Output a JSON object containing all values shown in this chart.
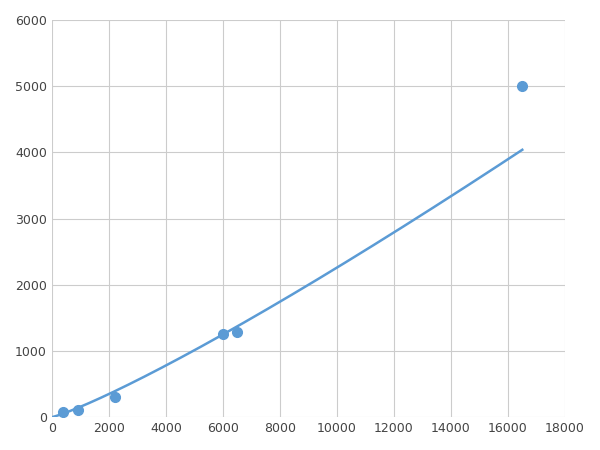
{
  "x_points": [
    400,
    900,
    2200,
    6000,
    6500,
    16500
  ],
  "y_points": [
    75,
    110,
    305,
    1250,
    1280,
    5000
  ],
  "line_color": "#5b9bd5",
  "marker_color": "#5b9bd5",
  "marker_size": 7,
  "linewidth": 1.8,
  "xlim": [
    0,
    18000
  ],
  "ylim": [
    0,
    6000
  ],
  "xticks": [
    0,
    2000,
    4000,
    6000,
    8000,
    10000,
    12000,
    14000,
    16000,
    18000
  ],
  "yticks": [
    0,
    1000,
    2000,
    3000,
    4000,
    5000,
    6000
  ],
  "grid_color": "#cccccc",
  "background_color": "#ffffff",
  "figsize": [
    6.0,
    4.5
  ],
  "dpi": 100
}
